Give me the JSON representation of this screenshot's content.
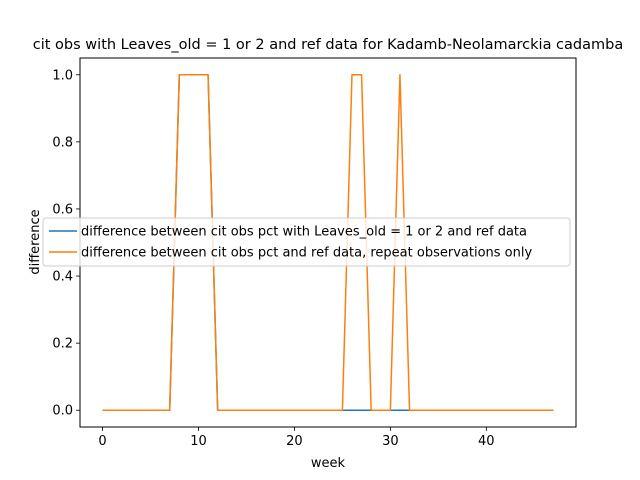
{
  "chart_data": {
    "type": "line",
    "title": "cit obs with Leaves_old = 1 or 2 and ref data for Kadamb-Neolamarckia cadamba",
    "xlabel": "week",
    "ylabel": "difference",
    "xlim": [
      -2.35,
      49.35
    ],
    "ylim": [
      -0.05,
      1.05
    ],
    "xticks": [
      0,
      10,
      20,
      30,
      40
    ],
    "yticks": [
      0.0,
      0.2,
      0.4,
      0.6,
      0.8,
      1.0
    ],
    "ytick_labels": [
      "0.0",
      "0.2",
      "0.4",
      "0.6",
      "0.8",
      "1.0"
    ],
    "grid": false,
    "legend_position": "center-right",
    "series": [
      {
        "name": "difference between cit obs pct with Leaves_old = 1 or 2 and ref data",
        "color": "#1f77b4",
        "x": [
          0,
          1,
          2,
          3,
          4,
          5,
          6,
          7,
          8,
          9,
          10,
          11,
          12,
          13,
          14,
          15,
          16,
          17,
          18,
          19,
          20,
          21,
          22,
          23,
          24,
          25,
          26,
          27,
          28,
          29,
          30,
          31,
          32,
          33,
          34,
          35,
          36,
          37,
          38,
          39,
          40,
          41,
          42,
          43,
          44,
          45,
          46,
          47
        ],
        "values": [
          0,
          0,
          0,
          0,
          0,
          0,
          0,
          0,
          1,
          1,
          1,
          1,
          0,
          0,
          0,
          0,
          0,
          0,
          0,
          0,
          0,
          0,
          0,
          0,
          0,
          0,
          0,
          0,
          0,
          0,
          0,
          0,
          0,
          0,
          0,
          0,
          0,
          0,
          0,
          0,
          0,
          0,
          0,
          0,
          0,
          0,
          0,
          0
        ]
      },
      {
        "name": "difference between cit obs pct and ref data, repeat observations only",
        "color": "#ff7f0e",
        "x": [
          0,
          1,
          2,
          3,
          4,
          5,
          6,
          7,
          8,
          9,
          10,
          11,
          12,
          13,
          14,
          15,
          16,
          17,
          18,
          19,
          20,
          21,
          22,
          23,
          24,
          25,
          26,
          27,
          28,
          29,
          30,
          31,
          32,
          33,
          34,
          35,
          36,
          37,
          38,
          39,
          40,
          41,
          42,
          43,
          44,
          45,
          46,
          47
        ],
        "values": [
          0,
          0,
          0,
          0,
          0,
          0,
          0,
          0,
          1,
          1,
          1,
          1,
          0,
          0,
          0,
          0,
          0,
          0,
          0,
          0,
          0,
          0,
          0,
          0,
          0,
          0,
          1,
          1,
          0,
          0,
          0,
          1,
          0,
          0,
          0,
          0,
          0,
          0,
          0,
          0,
          0,
          0,
          0,
          0,
          0,
          0,
          0,
          0
        ]
      }
    ]
  }
}
